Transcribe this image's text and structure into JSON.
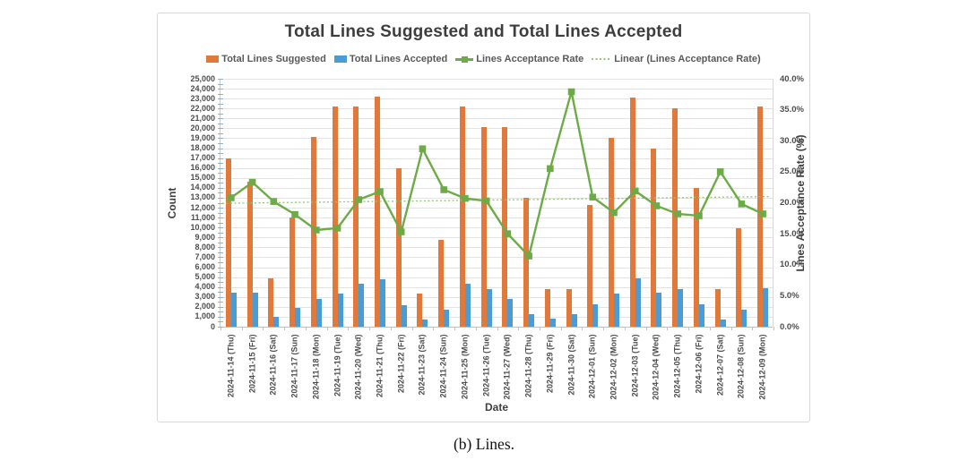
{
  "title": "Total Lines Suggested and Total Lines Accepted",
  "caption": "(b) Lines.",
  "colors": {
    "suggested_bar": "#e0793a",
    "accepted_bar": "#4a9cd4",
    "rate_line": "#6cab47",
    "trend_line": "#93c573",
    "gridline": "#e3e3e3",
    "axis_text": "#4d4d4d",
    "title_text": "#3d3d3d"
  },
  "legend": {
    "items": [
      {
        "label": "Total Lines Suggested",
        "swatch": "bar-orange"
      },
      {
        "label": "Total Lines Accepted",
        "swatch": "bar-blue"
      },
      {
        "label": "Lines Acceptance Rate",
        "swatch": "line-marker-green"
      },
      {
        "label": "Linear (Lines Acceptance Rate)",
        "swatch": "dotted-green"
      }
    ]
  },
  "chart_data": {
    "type": "bar",
    "title": "Total Lines Suggested and Total Lines Accepted",
    "xlabel": "Date",
    "ylabel_left": "Count",
    "ylabel_right": "Lines Acceptance Rate (%)",
    "ylim_left": [
      0,
      25000
    ],
    "ytick_step_left": 1000,
    "ylim_right": [
      0,
      40
    ],
    "ytick_step_right": 5,
    "grid": true,
    "legend_position": "top",
    "yticks_left": [
      "0",
      "1,000",
      "2,000",
      "3,000",
      "4,000",
      "5,000",
      "6,000",
      "7,000",
      "8,000",
      "9,000",
      "10,000",
      "11,000",
      "12,000",
      "13,000",
      "14,000",
      "15,000",
      "16,000",
      "17,000",
      "18,000",
      "19,000",
      "20,000",
      "21,000",
      "22,000",
      "23,000",
      "24,000",
      "25,000"
    ],
    "yticks_right": [
      "0.0%",
      "5.0%",
      "10.0%",
      "15.0%",
      "20.0%",
      "25.0%",
      "30.0%",
      "35.0%",
      "40.0%"
    ],
    "categories": [
      "2024-11-14 (Thu)",
      "2024-11-15 (Fri)",
      "2024-11-16 (Sat)",
      "2024-11-17 (Sun)",
      "2024-11-18 (Mon)",
      "2024-11-19 (Tue)",
      "2024-11-20 (Wed)",
      "2024-11-21 (Thu)",
      "2024-11-22 (Fri)",
      "2024-11-23 (Sat)",
      "2024-11-24 (Sun)",
      "2024-11-25 (Mon)",
      "2024-11-26 (Tue)",
      "2024-11-27 (Wed)",
      "2024-11-28 (Thu)",
      "2024-11-29 (Fri)",
      "2024-11-30 (Sat)",
      "2024-12-01 (Sun)",
      "2024-12-02 (Mon)",
      "2024-12-03 (Tue)",
      "2024-12-04 (Wed)",
      "2024-12-05 (Thu)",
      "2024-12-06 (Fri)",
      "2024-12-07 (Sat)",
      "2024-12-08 (Sun)",
      "2024-12-09 (Mon)"
    ],
    "series": [
      {
        "name": "Total Lines Suggested",
        "type": "bar",
        "axis": "left",
        "values": [
          17000,
          14600,
          4900,
          11000,
          19100,
          22200,
          22200,
          23200,
          16000,
          3300,
          8800,
          22200,
          20100,
          20100,
          13000,
          3800,
          3800,
          12300,
          19000,
          23100,
          18000,
          22000,
          14000,
          3800,
          9900,
          22200
        ]
      },
      {
        "name": "Total Lines Accepted",
        "type": "bar",
        "axis": "left",
        "values": [
          3400,
          3400,
          1000,
          1900,
          2800,
          3300,
          4300,
          4800,
          2200,
          700,
          1700,
          4300,
          3800,
          2800,
          1300,
          800,
          1300,
          2300,
          3300,
          4900,
          3400,
          3800,
          2300,
          700,
          1700,
          3900
        ]
      },
      {
        "name": "Lines Acceptance Rate",
        "type": "line",
        "axis": "right",
        "unit": "%",
        "values": [
          20.8,
          23.3,
          20.2,
          18.1,
          15.6,
          15.9,
          20.5,
          21.8,
          15.3,
          28.7,
          22.1,
          20.7,
          20.3,
          15.0,
          11.4,
          25.5,
          37.9,
          20.9,
          18.4,
          21.9,
          19.5,
          18.2,
          17.9,
          25.0,
          19.8,
          18.2
        ]
      },
      {
        "name": "Linear (Lines Acceptance Rate)",
        "type": "trendline",
        "axis": "right",
        "unit": "%",
        "trend_start": 19.9,
        "trend_end": 21.0
      }
    ]
  }
}
